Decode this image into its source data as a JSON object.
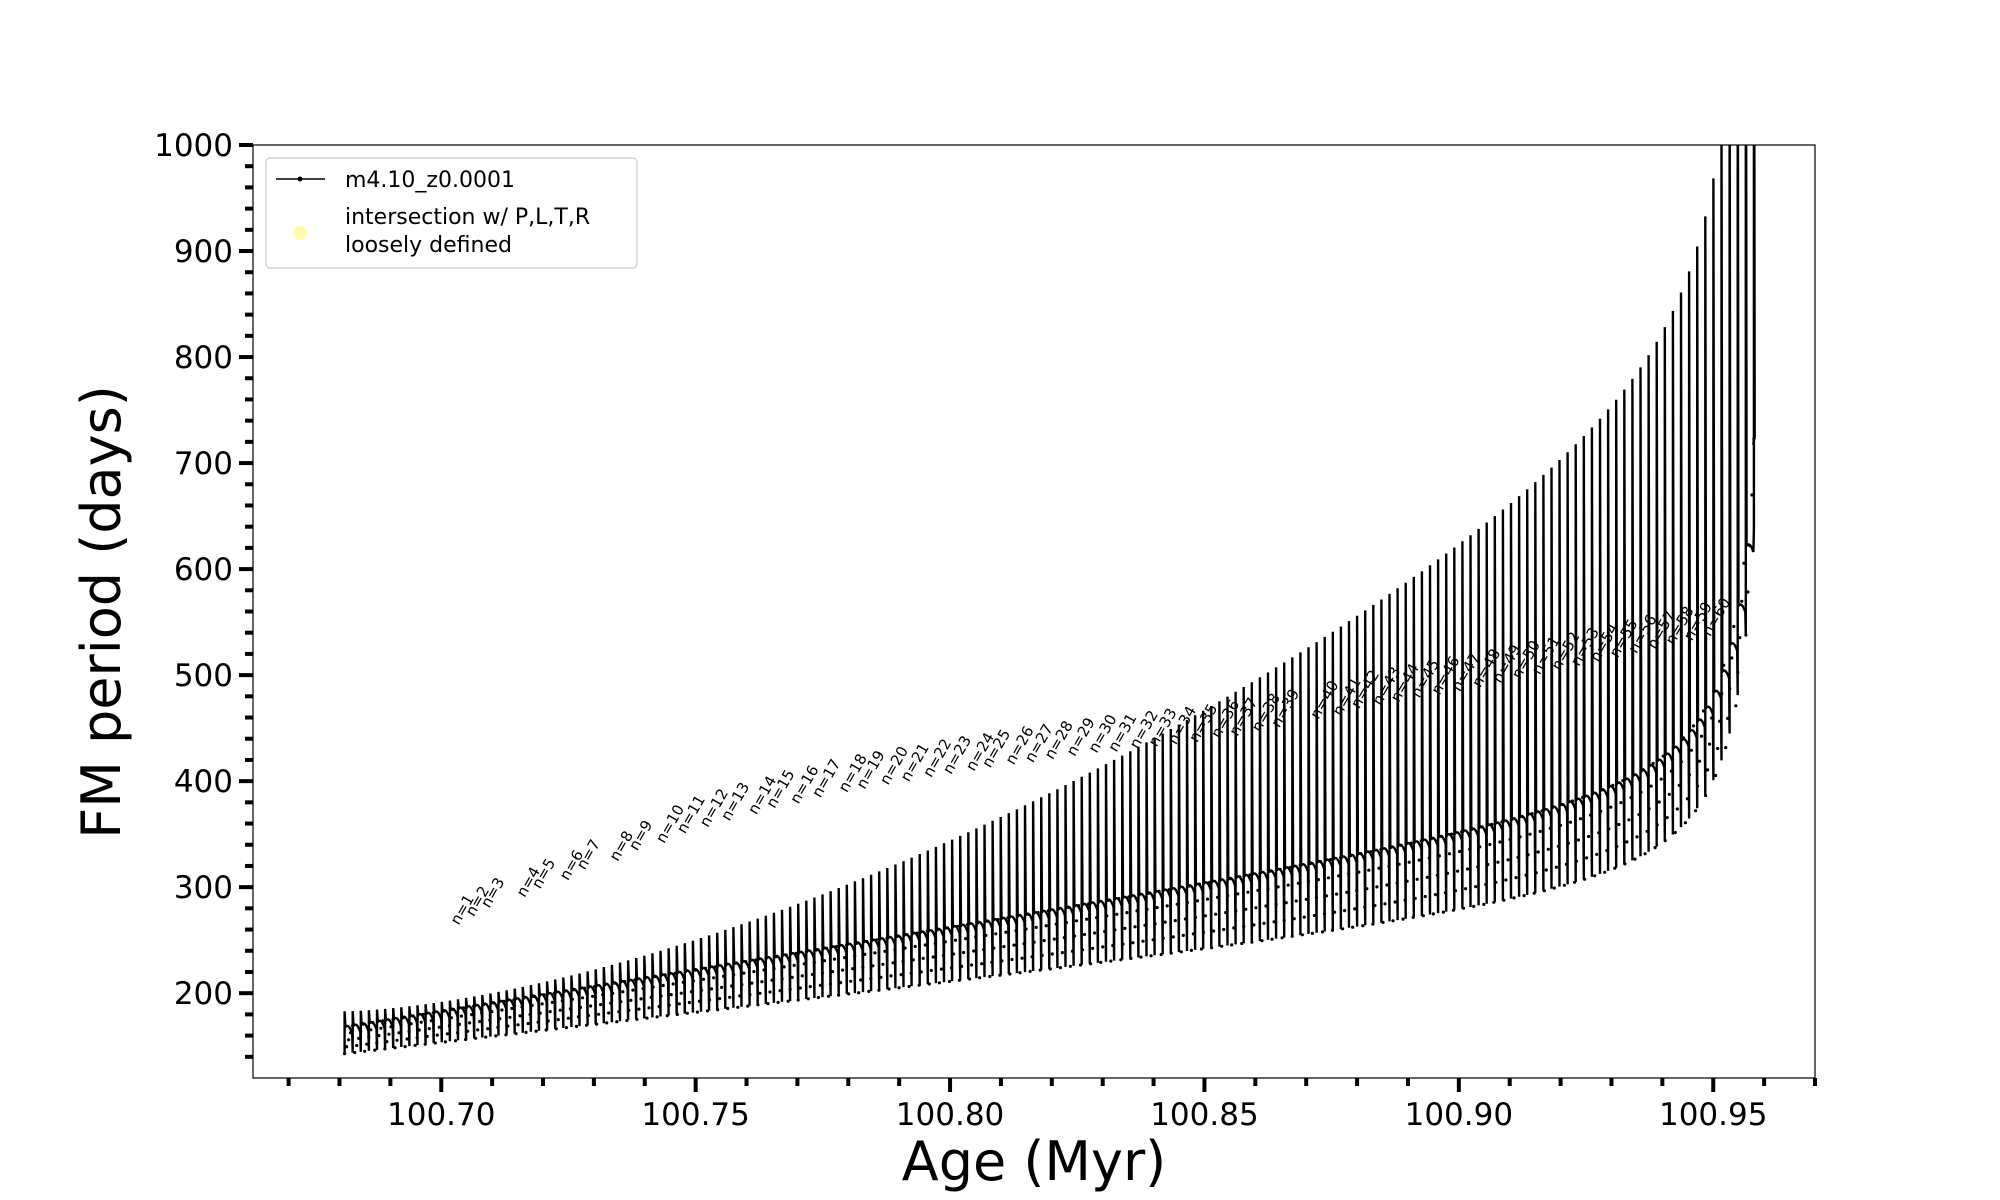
{
  "chart_data": {
    "type": "line",
    "xlabel": "Age (Myr)",
    "ylabel": "FM period (days)",
    "xlim": [
      100.663,
      100.97
    ],
    "ylim": [
      120,
      1000
    ],
    "xticks": [
      {
        "value": 100.7,
        "label": "100.70"
      },
      {
        "value": 100.75,
        "label": "100.75"
      },
      {
        "value": 100.8,
        "label": "100.80"
      },
      {
        "value": 100.85,
        "label": "100.85"
      },
      {
        "value": 100.9,
        "label": "100.90"
      },
      {
        "value": 100.95,
        "label": "100.95"
      }
    ],
    "yticks": [
      {
        "value": 200,
        "label": "200"
      },
      {
        "value": 300,
        "label": "300"
      },
      {
        "value": 400,
        "label": "400"
      },
      {
        "value": 500,
        "label": "500"
      },
      {
        "value": 600,
        "label": "600"
      },
      {
        "value": 700,
        "label": "700"
      },
      {
        "value": 800,
        "label": "800"
      },
      {
        "value": 900,
        "label": "900"
      },
      {
        "value": 1000,
        "label": "1000"
      }
    ],
    "x_minor_step": 0.01,
    "y_minor_step": 20,
    "grid": false,
    "legend": {
      "placement": "upper-left",
      "entries": [
        {
          "label": "m4.10_z0.0001",
          "marker": "line-with-dots",
          "color": "#000000"
        },
        {
          "label": "intersection w/ P,L,T,R\nloosely defined",
          "marker": "circle",
          "color": "#fffab0"
        }
      ]
    },
    "series": [
      {
        "name": "m4.10_z0.0001",
        "color": "#000000",
        "description": "thermal pulse cycles; each cycle rises from a low period to a peak then returns to a baseline band",
        "pulses_first_age": 100.681,
        "pulses_last_age": 100.958,
        "pulses": [
          {
            "n": "n=1",
            "age": 100.7034,
            "peak": 258
          },
          {
            "n": "n=2",
            "age": 100.7064,
            "peak": 266
          },
          {
            "n": "n=3",
            "age": 100.7094,
            "peak": 274
          },
          {
            "n": "n=4",
            "age": 100.7164,
            "peak": 284
          },
          {
            "n": "n=5",
            "age": 100.7194,
            "peak": 292
          },
          {
            "n": "n=6",
            "age": 100.7249,
            "peak": 300
          },
          {
            "n": "n=7",
            "age": 100.7282,
            "peak": 310
          },
          {
            "n": "n=8",
            "age": 100.7347,
            "peak": 318
          },
          {
            "n": "n=9",
            "age": 100.7385,
            "peak": 328
          },
          {
            "n": "n=10",
            "age": 100.7438,
            "peak": 335
          },
          {
            "n": "n=11",
            "age": 100.7479,
            "peak": 344
          },
          {
            "n": "n=12",
            "age": 100.7524,
            "peak": 350
          },
          {
            "n": "n=13",
            "age": 100.7566,
            "peak": 356
          },
          {
            "n": "n=14",
            "age": 100.7619,
            "peak": 362
          },
          {
            "n": "n=15",
            "age": 100.7655,
            "peak": 368
          },
          {
            "n": "n=16",
            "age": 100.7702,
            "peak": 372
          },
          {
            "n": "n=17",
            "age": 100.7745,
            "peak": 378
          },
          {
            "n": "n=18",
            "age": 100.7797,
            "peak": 383
          },
          {
            "n": "n=19",
            "age": 100.7832,
            "peak": 386
          },
          {
            "n": "n=20",
            "age": 100.7878,
            "peak": 390
          },
          {
            "n": "n=21",
            "age": 100.7919,
            "peak": 393
          },
          {
            "n": "n=22",
            "age": 100.7963,
            "peak": 397
          },
          {
            "n": "n=23",
            "age": 100.8002,
            "peak": 400
          },
          {
            "n": "n=24",
            "age": 100.8047,
            "peak": 403
          },
          {
            "n": "n=25",
            "age": 100.8079,
            "peak": 406
          },
          {
            "n": "n=26",
            "age": 100.8125,
            "peak": 409
          },
          {
            "n": "n=27",
            "age": 100.8163,
            "peak": 411
          },
          {
            "n": "n=28",
            "age": 100.8202,
            "peak": 414
          },
          {
            "n": "n=29",
            "age": 100.8245,
            "peak": 417
          },
          {
            "n": "n=30",
            "age": 100.8288,
            "peak": 420
          },
          {
            "n": "n=31",
            "age": 100.8327,
            "peak": 421
          },
          {
            "n": "n=32",
            "age": 100.8369,
            "peak": 424
          },
          {
            "n": "n=33",
            "age": 100.8406,
            "peak": 426
          },
          {
            "n": "n=34",
            "age": 100.8444,
            "peak": 428
          },
          {
            "n": "n=35",
            "age": 100.8486,
            "peak": 430
          },
          {
            "n": "n=36",
            "age": 100.8529,
            "peak": 434
          },
          {
            "n": "n=37",
            "age": 100.8565,
            "peak": 436
          },
          {
            "n": "n=38",
            "age": 100.8609,
            "peak": 440
          },
          {
            "n": "n=39",
            "age": 100.8647,
            "peak": 444
          },
          {
            "n": "n=40",
            "age": 100.8724,
            "peak": 452
          },
          {
            "n": "n=41",
            "age": 100.8768,
            "peak": 455
          },
          {
            "n": "n=42",
            "age": 100.8804,
            "peak": 462
          },
          {
            "n": "n=43",
            "age": 100.8846,
            "peak": 465
          },
          {
            "n": "n=44",
            "age": 100.8882,
            "peak": 468
          },
          {
            "n": "n=45",
            "age": 100.8922,
            "peak": 472
          },
          {
            "n": "n=46",
            "age": 100.8962,
            "peak": 475
          },
          {
            "n": "n=47",
            "age": 100.9002,
            "peak": 478
          },
          {
            "n": "n=48",
            "age": 100.9042,
            "peak": 482
          },
          {
            "n": "n=49",
            "age": 100.9082,
            "peak": 486
          },
          {
            "n": "n=50",
            "age": 100.912,
            "peak": 490
          },
          {
            "n": "n=51",
            "age": 100.9159,
            "peak": 494
          },
          {
            "n": "n=52",
            "age": 100.9198,
            "peak": 498
          },
          {
            "n": "n=53",
            "age": 100.9236,
            "peak": 502
          },
          {
            "n": "n=54",
            "age": 100.9274,
            "peak": 506
          },
          {
            "n": "n=55",
            "age": 100.9312,
            "peak": 510
          },
          {
            "n": "n=56",
            "age": 100.9349,
            "peak": 514
          },
          {
            "n": "n=57",
            "age": 100.9386,
            "peak": 518
          },
          {
            "n": "n=58",
            "age": 100.9422,
            "peak": 522
          },
          {
            "n": "n=59",
            "age": 100.9458,
            "peak": 526
          },
          {
            "n": "n=60",
            "age": 100.9494,
            "peak": 530
          }
        ]
      }
    ]
  }
}
